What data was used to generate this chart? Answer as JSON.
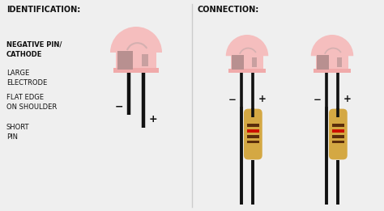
{
  "bg_color": "#efefef",
  "led_body_color": "#f5bebe",
  "led_body_color2": "#f8cece",
  "led_shoulder_color": "#f0aaaa",
  "led_electrode_large_color": "#b89090",
  "led_electrode_small_color": "#c8a0a0",
  "led_wire_color": "#d4b0b0",
  "pin_color": "#111111",
  "resistor_body_color": "#d4a843",
  "resistor_s1_color": "#5a2d0c",
  "resistor_s2_color": "#5a2d0c",
  "resistor_s3_color": "#cc1100",
  "resistor_s4_color": "#5a2d0c",
  "divider_color": "#cccccc",
  "text_color": "#111111",
  "label_id": "IDENTIFICATION:",
  "label_conn": "CONNECTION:",
  "label_neg_pin": "NEGATIVE PIN/\nCATHODE",
  "label_large_elec": "LARGE\nELECTRODE",
  "label_flat_edge": "FLAT EDGE\nON SHOULDER",
  "label_short_pin": "SHORT\nPIN"
}
